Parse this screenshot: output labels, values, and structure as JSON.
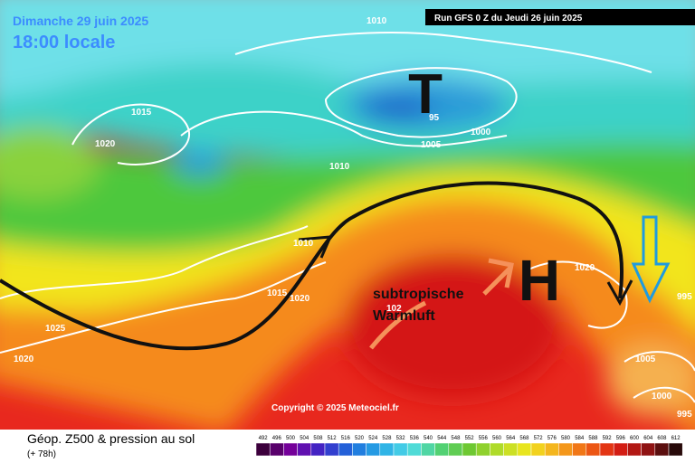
{
  "header": {
    "date": "Dimanche 29 juin 2025",
    "time": "18:00 locale",
    "run": "Run GFS 0 Z du Jeudi 26 juin 2025"
  },
  "map": {
    "low": "T",
    "high": "H",
    "annotation_line1": "subtropische",
    "annotation_line2": "Warmluft",
    "copyright": "Copyright © 2025 Meteociel.fr",
    "isobar_labels": [
      "1010",
      "1015",
      "1020",
      "95",
      "1005",
      "1000",
      "1010",
      "1010",
      "1015",
      "1020",
      "1025",
      "1020",
      "1020",
      "102",
      "1005",
      "1000",
      "995",
      "995"
    ]
  },
  "legend": {
    "title": "Géop. Z500 & pression au sol",
    "subtitle": "(+ 78h)",
    "scale": [
      492,
      496,
      500,
      504,
      508,
      512,
      516,
      520,
      524,
      528,
      532,
      536,
      540,
      544,
      548,
      552,
      556,
      560,
      564,
      568,
      572,
      576,
      580,
      584,
      588,
      592,
      596,
      600,
      604,
      608,
      612
    ]
  }
}
